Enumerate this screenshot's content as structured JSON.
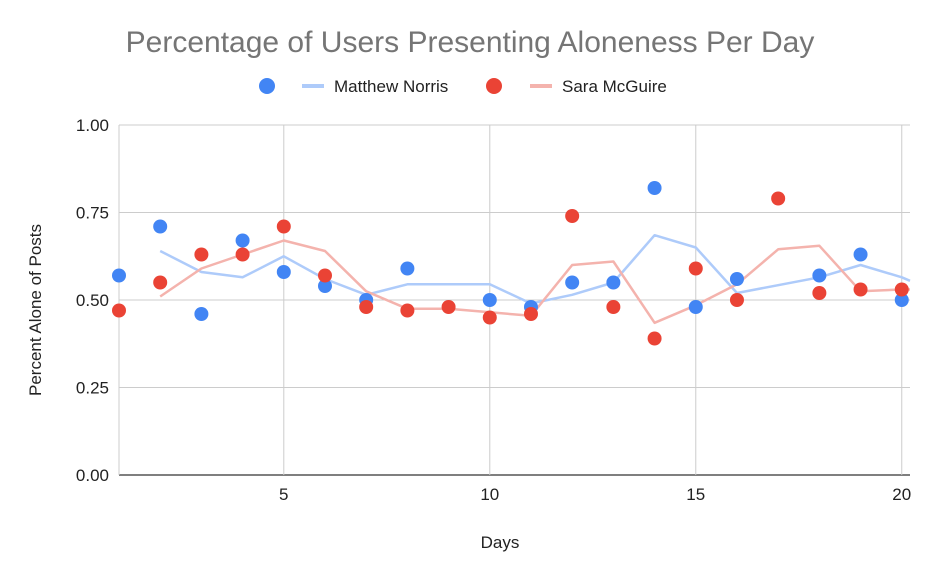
{
  "chart_data": {
    "type": "scatter",
    "title": "Percentage of Users Presenting Aloneness Per Day",
    "xlabel": "Days",
    "ylabel": "Percent Alone of Posts",
    "xlim": [
      1,
      20.2
    ],
    "ylim": [
      0,
      1
    ],
    "x_ticks": [
      5,
      10,
      15,
      20
    ],
    "y_ticks": [
      "0.00",
      "0.25",
      "0.50",
      "0.75",
      "1.00"
    ],
    "grid": true,
    "legend_position": "top",
    "series": [
      {
        "name": "Matthew Norris",
        "color": "#4285F4",
        "trend_color": "#aecbfa",
        "points": [
          [
            1,
            0.57
          ],
          [
            2,
            0.71
          ],
          [
            3,
            0.46
          ],
          [
            4,
            0.67
          ],
          [
            5,
            0.58
          ],
          [
            6,
            0.54
          ],
          [
            7,
            0.5
          ],
          [
            8,
            0.59
          ],
          [
            10,
            0.5
          ],
          [
            11,
            0.48
          ],
          [
            12,
            0.55
          ],
          [
            13,
            0.55
          ],
          [
            14,
            0.82
          ],
          [
            15,
            0.48
          ],
          [
            16,
            0.56
          ],
          [
            18,
            0.57
          ],
          [
            19,
            0.63
          ],
          [
            20,
            0.5
          ]
        ],
        "trend": [
          [
            2,
            0.64
          ],
          [
            3,
            0.58
          ],
          [
            4,
            0.565
          ],
          [
            5,
            0.625
          ],
          [
            6,
            0.56
          ],
          [
            7,
            0.515
          ],
          [
            8,
            0.545
          ],
          [
            10,
            0.545
          ],
          [
            11,
            0.49
          ],
          [
            12,
            0.515
          ],
          [
            13,
            0.55
          ],
          [
            14,
            0.685
          ],
          [
            15,
            0.65
          ],
          [
            16,
            0.52
          ],
          [
            18,
            0.565
          ],
          [
            19,
            0.6
          ],
          [
            20,
            0.565
          ],
          [
            20.2,
            0.555
          ]
        ]
      },
      {
        "name": "Sara McGuire",
        "color": "#EA4335",
        "trend_color": "#f4b3ad",
        "points": [
          [
            1,
            0.47
          ],
          [
            2,
            0.55
          ],
          [
            3,
            0.63
          ],
          [
            4,
            0.63
          ],
          [
            5,
            0.71
          ],
          [
            6,
            0.57
          ],
          [
            7,
            0.48
          ],
          [
            8,
            0.47
          ],
          [
            9,
            0.48
          ],
          [
            10,
            0.45
          ],
          [
            11,
            0.46
          ],
          [
            12,
            0.74
          ],
          [
            13,
            0.48
          ],
          [
            14,
            0.39
          ],
          [
            15,
            0.59
          ],
          [
            16,
            0.5
          ],
          [
            17,
            0.79
          ],
          [
            18,
            0.52
          ],
          [
            19,
            0.53
          ],
          [
            20,
            0.53
          ]
        ],
        "trend": [
          [
            2,
            0.51
          ],
          [
            3,
            0.59
          ],
          [
            4,
            0.63
          ],
          [
            5,
            0.67
          ],
          [
            6,
            0.64
          ],
          [
            7,
            0.525
          ],
          [
            8,
            0.475
          ],
          [
            9,
            0.475
          ],
          [
            10,
            0.465
          ],
          [
            11,
            0.455
          ],
          [
            12,
            0.6
          ],
          [
            13,
            0.61
          ],
          [
            14,
            0.435
          ],
          [
            15,
            0.485
          ],
          [
            16,
            0.545
          ],
          [
            17,
            0.645
          ],
          [
            18,
            0.655
          ],
          [
            19,
            0.525
          ],
          [
            20,
            0.53
          ],
          [
            20.2,
            0.53
          ]
        ]
      }
    ]
  }
}
